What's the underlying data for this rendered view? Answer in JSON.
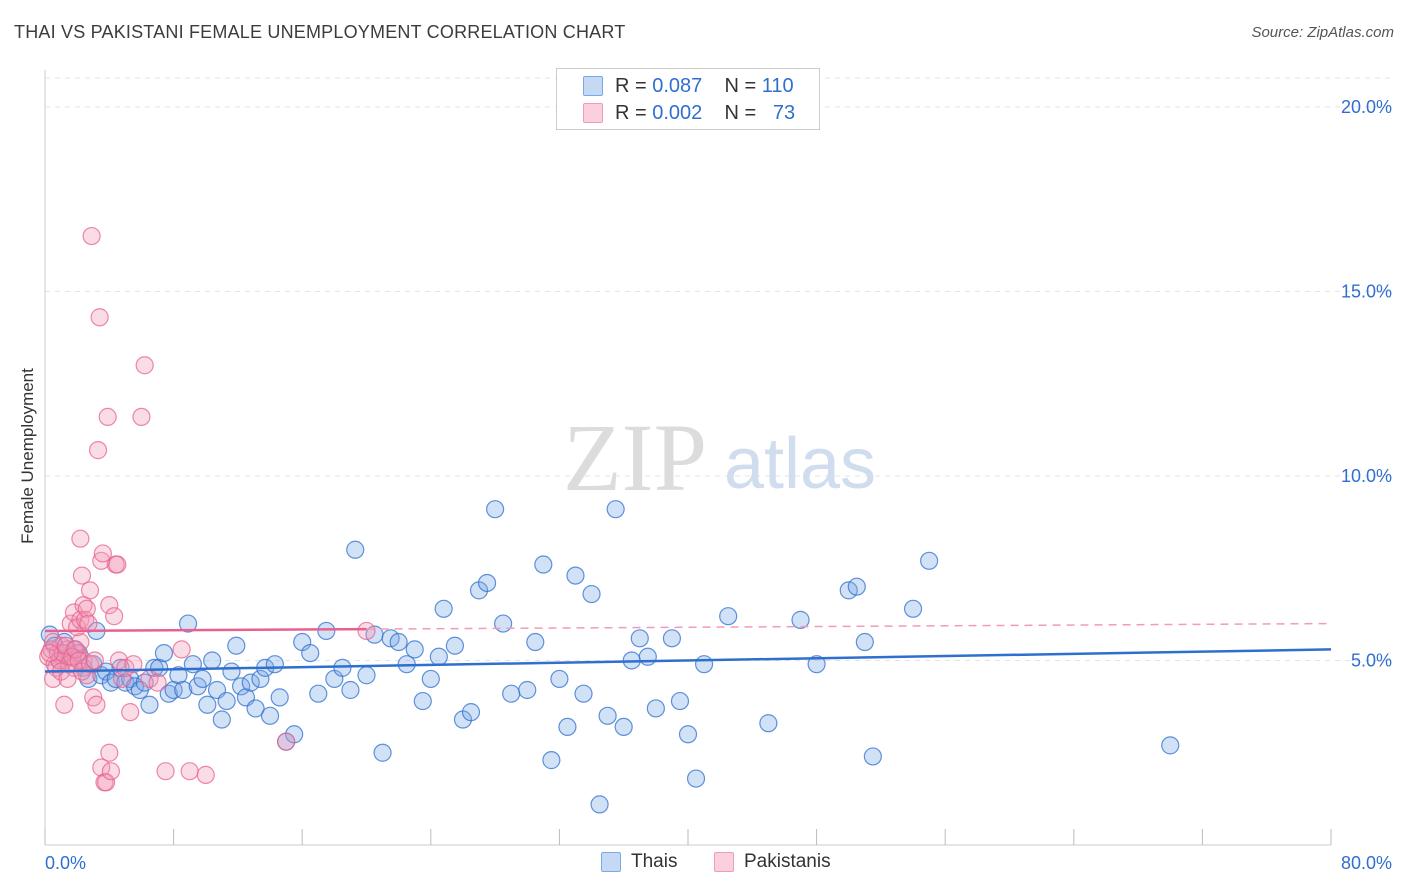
{
  "header": {
    "title": "THAI VS PAKISTANI FEMALE UNEMPLOYMENT CORRELATION CHART",
    "source": "Source: ZipAtlas.com"
  },
  "watermark": {
    "zip": "ZIP",
    "atlas": "atlas"
  },
  "legend": {
    "r_label": "R =",
    "n_label": "N =",
    "rows": [
      {
        "r_value": "0.087",
        "n_value": "110",
        "color": "#7aaae6"
      },
      {
        "r_value": "0.002",
        "n_value": "73",
        "color": "#f29bb8"
      }
    ]
  },
  "bottom_legend": {
    "thais": "Thais",
    "pakistanis": "Pakistanis"
  },
  "chart_data": {
    "type": "scatter",
    "title": "THAI VS PAKISTANI FEMALE UNEMPLOYMENT CORRELATION CHART",
    "xlabel": "",
    "ylabel": "Female Unemployment",
    "xlim": [
      0,
      80
    ],
    "ylim": [
      0,
      21
    ],
    "x_tick_labels": [
      "0.0%",
      "80.0%"
    ],
    "y_ticks": [
      5,
      10,
      15,
      20
    ],
    "y_tick_labels": [
      "5.0%",
      "10.0%",
      "15.0%",
      "20.0%"
    ],
    "grid": true,
    "colors": {
      "thais": "#2f6fcf",
      "thais_fill": "#7aaae6",
      "pakistanis": "#e8608f",
      "pakistanis_fill": "#f29bb8",
      "tick_text": "#2f6fcf"
    },
    "series": [
      {
        "name": "Thais",
        "trend": {
          "x": [
            0,
            80
          ],
          "y": [
            4.7,
            5.3
          ],
          "dashed_from": null
        },
        "points": [
          [
            0.3,
            5.7
          ],
          [
            0.6,
            5.4
          ],
          [
            0.9,
            5.0
          ],
          [
            1.2,
            5.5
          ],
          [
            1.5,
            5.1
          ],
          [
            1.8,
            5.3
          ],
          [
            2.1,
            5.2
          ],
          [
            2.4,
            4.8
          ],
          [
            2.7,
            4.5
          ],
          [
            3.0,
            4.9
          ],
          [
            3.2,
            5.8
          ],
          [
            3.5,
            4.6
          ],
          [
            3.8,
            4.7
          ],
          [
            4.1,
            4.4
          ],
          [
            4.4,
            4.5
          ],
          [
            4.7,
            4.8
          ],
          [
            5.0,
            4.4
          ],
          [
            5.3,
            4.5
          ],
          [
            5.6,
            4.3
          ],
          [
            5.9,
            4.2
          ],
          [
            6.2,
            4.4
          ],
          [
            6.5,
            3.8
          ],
          [
            6.8,
            4.8
          ],
          [
            7.1,
            4.8
          ],
          [
            7.4,
            5.2
          ],
          [
            7.7,
            4.1
          ],
          [
            8.0,
            4.2
          ],
          [
            8.3,
            4.6
          ],
          [
            8.6,
            4.2
          ],
          [
            8.9,
            6.0
          ],
          [
            9.2,
            4.9
          ],
          [
            9.5,
            4.3
          ],
          [
            9.8,
            4.5
          ],
          [
            10.1,
            3.8
          ],
          [
            10.4,
            5.0
          ],
          [
            10.7,
            4.2
          ],
          [
            11.0,
            3.4
          ],
          [
            11.3,
            3.9
          ],
          [
            11.6,
            4.7
          ],
          [
            11.9,
            5.4
          ],
          [
            12.2,
            4.3
          ],
          [
            12.5,
            4.0
          ],
          [
            12.8,
            4.4
          ],
          [
            13.1,
            3.7
          ],
          [
            13.4,
            4.5
          ],
          [
            13.7,
            4.8
          ],
          [
            14.0,
            3.5
          ],
          [
            14.3,
            4.9
          ],
          [
            14.6,
            4.0
          ],
          [
            15.0,
            2.8
          ],
          [
            15.5,
            3.0
          ],
          [
            16.0,
            5.5
          ],
          [
            16.5,
            5.2
          ],
          [
            17.0,
            4.1
          ],
          [
            17.5,
            5.8
          ],
          [
            18.0,
            4.5
          ],
          [
            18.5,
            4.8
          ],
          [
            19.0,
            4.2
          ],
          [
            19.3,
            8.0
          ],
          [
            20.0,
            4.6
          ],
          [
            20.5,
            5.7
          ],
          [
            21.0,
            2.5
          ],
          [
            21.5,
            5.6
          ],
          [
            22.0,
            5.5
          ],
          [
            22.5,
            4.9
          ],
          [
            23.0,
            5.3
          ],
          [
            23.5,
            3.9
          ],
          [
            24.0,
            4.5
          ],
          [
            24.5,
            5.1
          ],
          [
            24.8,
            6.4
          ],
          [
            25.5,
            5.4
          ],
          [
            26.0,
            3.4
          ],
          [
            26.5,
            3.6
          ],
          [
            27.0,
            6.9
          ],
          [
            27.5,
            7.1
          ],
          [
            28.0,
            9.1
          ],
          [
            28.5,
            6.0
          ],
          [
            29.0,
            4.1
          ],
          [
            30.0,
            4.2
          ],
          [
            30.5,
            5.5
          ],
          [
            31.0,
            7.6
          ],
          [
            31.5,
            2.3
          ],
          [
            32.0,
            4.5
          ],
          [
            32.5,
            3.2
          ],
          [
            33.0,
            7.3
          ],
          [
            33.5,
            4.1
          ],
          [
            34.0,
            6.8
          ],
          [
            34.5,
            1.1
          ],
          [
            35.0,
            3.5
          ],
          [
            35.5,
            9.1
          ],
          [
            36.0,
            3.2
          ],
          [
            36.5,
            5.0
          ],
          [
            37.0,
            5.6
          ],
          [
            37.5,
            5.1
          ],
          [
            38.0,
            3.7
          ],
          [
            39.0,
            5.6
          ],
          [
            39.5,
            3.9
          ],
          [
            40.0,
            3.0
          ],
          [
            40.5,
            1.8
          ],
          [
            41.0,
            4.9
          ],
          [
            42.5,
            6.2
          ],
          [
            45.0,
            3.3
          ],
          [
            47.0,
            6.1
          ],
          [
            48.0,
            4.9
          ],
          [
            50.0,
            6.9
          ],
          [
            50.5,
            7.0
          ],
          [
            51.0,
            5.5
          ],
          [
            51.5,
            2.4
          ],
          [
            54.0,
            6.4
          ],
          [
            55.0,
            7.7
          ],
          [
            70.0,
            2.7
          ]
        ]
      },
      {
        "name": "Pakistanis",
        "trend": {
          "x": [
            0,
            80
          ],
          "y": [
            5.8,
            6.0
          ],
          "dashed_from": 20
        },
        "points": [
          [
            0.2,
            5.1
          ],
          [
            0.4,
            5.3
          ],
          [
            0.6,
            4.9
          ],
          [
            0.8,
            5.2
          ],
          [
            1.0,
            5.4
          ],
          [
            1.2,
            5.0
          ],
          [
            1.4,
            5.3
          ],
          [
            1.6,
            5.1
          ],
          [
            1.8,
            4.8
          ],
          [
            2.0,
            5.2
          ],
          [
            2.2,
            5.5
          ],
          [
            2.4,
            5.0
          ],
          [
            2.6,
            4.6
          ],
          [
            0.5,
            5.5
          ],
          [
            0.7,
            4.8
          ],
          [
            0.9,
            5.0
          ],
          [
            1.1,
            5.2
          ],
          [
            1.3,
            5.4
          ],
          [
            1.5,
            4.9
          ],
          [
            1.7,
            5.1
          ],
          [
            1.9,
            5.3
          ],
          [
            2.1,
            5.0
          ],
          [
            2.3,
            4.7
          ],
          [
            0.3,
            5.2
          ],
          [
            0.5,
            4.5
          ],
          [
            1.0,
            4.7
          ],
          [
            1.2,
            3.8
          ],
          [
            1.4,
            4.5
          ],
          [
            1.6,
            6.0
          ],
          [
            1.8,
            6.3
          ],
          [
            2.0,
            5.9
          ],
          [
            2.2,
            6.1
          ],
          [
            2.4,
            6.5
          ],
          [
            2.2,
            8.3
          ],
          [
            2.3,
            7.3
          ],
          [
            2.5,
            6.1
          ],
          [
            2.6,
            6.4
          ],
          [
            2.7,
            6.0
          ],
          [
            2.8,
            4.9
          ],
          [
            3.0,
            4.0
          ],
          [
            2.9,
            16.5
          ],
          [
            3.1,
            5.0
          ],
          [
            3.2,
            3.8
          ],
          [
            3.4,
            14.3
          ],
          [
            3.5,
            7.7
          ],
          [
            3.6,
            7.9
          ],
          [
            3.7,
            1.7
          ],
          [
            3.9,
            11.6
          ],
          [
            4.0,
            6.5
          ],
          [
            3.3,
            10.7
          ],
          [
            3.5,
            2.1
          ],
          [
            3.8,
            1.7
          ],
          [
            4.0,
            2.5
          ],
          [
            4.1,
            2.0
          ],
          [
            4.3,
            6.2
          ],
          [
            4.4,
            7.6
          ],
          [
            4.5,
            7.6
          ],
          [
            4.6,
            5.0
          ],
          [
            4.8,
            4.5
          ],
          [
            5.0,
            4.8
          ],
          [
            5.3,
            3.6
          ],
          [
            5.5,
            4.9
          ],
          [
            6.0,
            11.6
          ],
          [
            6.2,
            13.0
          ],
          [
            6.5,
            4.5
          ],
          [
            7.0,
            4.4
          ],
          [
            7.5,
            2.0
          ],
          [
            8.5,
            5.3
          ],
          [
            9.0,
            2.0
          ],
          [
            10.0,
            1.9
          ],
          [
            15.0,
            2.8
          ],
          [
            20.0,
            5.8
          ],
          [
            2.8,
            6.9
          ]
        ]
      }
    ]
  }
}
